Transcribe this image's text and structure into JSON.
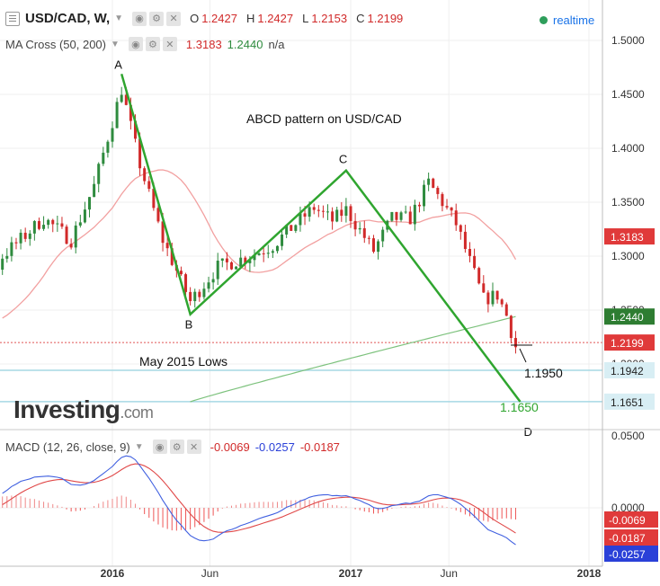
{
  "header": {
    "symbol": "USD/CAD, W,",
    "o_label": "O",
    "o_value": "1.2427",
    "h_label": "H",
    "h_value": "1.2427",
    "l_label": "L",
    "l_value": "1.2153",
    "c_label": "C",
    "c_value": "1.2199",
    "realtime": "realtime"
  },
  "ma_legend": {
    "name": "MA Cross (50, 200)",
    "v1": "1.3183",
    "v2": "1.2440",
    "v3": "n/a"
  },
  "macd_legend": {
    "name": "MACD (12, 26, close, 9)",
    "v1": "-0.0069",
    "v2": "-0.0257",
    "v3": "-0.0187"
  },
  "logo": {
    "main": "Investing",
    "suffix": ".com"
  },
  "colors": {
    "up": "#2e8b3e",
    "down": "#d12a2a",
    "pattern": "#2fa52f",
    "ma_fast": "#f2a0a0",
    "ma_slow": "#7dc27d",
    "macd": "#4060e0",
    "signal": "#e04848",
    "level_line": "#a6d8e4",
    "grid": "#efefef"
  },
  "chart_data": {
    "type": "line",
    "title": "ABCD pattern on USD/CAD",
    "price_axis": {
      "ylim": [
        1.165,
        1.5
      ],
      "ticks": [
        "1.5000",
        "1.4500",
        "1.4000",
        "1.3500",
        "1.3000",
        "1.2500",
        "1.2000"
      ]
    },
    "x_ticks": [
      "2016",
      "Jun",
      "2017",
      "Jun",
      "2018"
    ],
    "macd_axis": {
      "ticks": [
        "0.0500",
        "0.0000"
      ]
    },
    "price_badges": [
      {
        "value": "1.3183",
        "color": "#e03a3a"
      },
      {
        "value": "1.2440",
        "color": "#2e7d32"
      },
      {
        "value": "1.2199",
        "color": "#e03a3a"
      },
      {
        "value": "1.1942",
        "color": "#d8eef4"
      },
      {
        "value": "1.1651",
        "color": "#d8eef4"
      }
    ],
    "macd_badges": [
      {
        "value": "-0.0069",
        "color": "#e03a3a"
      },
      {
        "value": "-0.0187",
        "color": "#e03a3a"
      },
      {
        "value": "-0.0257",
        "color": "#2a40d8"
      }
    ],
    "abcd": [
      {
        "label": "A",
        "date": "2016-01-18",
        "price": 1.4689
      },
      {
        "label": "B",
        "date": "2016-05-02",
        "price": 1.2461
      },
      {
        "label": "C",
        "date": "2016-12-26",
        "price": 1.3794
      },
      {
        "label": "D",
        "date": "2017-09-18",
        "price": 1.165
      }
    ],
    "annotations": {
      "projection_1": "1.1950",
      "projection_2": "1.1650",
      "support": "May 2015 Lows",
      "support_price": 1.1942,
      "target_price": 1.1651,
      "last_close": 1.2199
    },
    "ma_fast_latest": 1.3183,
    "ma_slow_latest": 1.244,
    "macd_latest": {
      "histogram": -0.0069,
      "macd": -0.0257,
      "signal": -0.0187
    }
  }
}
